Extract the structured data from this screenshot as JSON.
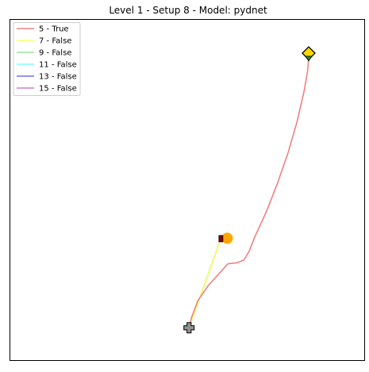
{
  "chart_data": {
    "type": "line",
    "title": "Level 1 - Setup 8 - Model: pydnet",
    "xlabel": "",
    "ylabel": "",
    "xlim": [
      0,
      100
    ],
    "ylim": [
      0,
      100
    ],
    "grid": false,
    "ticks_visible": false,
    "legend_position": "top-left",
    "series": [
      {
        "name": "5 - True",
        "color": "#f08080",
        "points": [
          [
            50.5,
            9.5
          ],
          [
            51.2,
            12.5
          ],
          [
            53,
            17.5
          ],
          [
            56,
            22
          ],
          [
            59.5,
            26
          ],
          [
            61.5,
            28.3
          ],
          [
            64,
            28.6
          ],
          [
            66,
            29.4
          ],
          [
            67.5,
            32
          ],
          [
            69,
            36
          ],
          [
            72.5,
            44
          ],
          [
            75.5,
            52
          ],
          [
            78.5,
            61
          ],
          [
            81,
            70
          ],
          [
            83,
            79
          ],
          [
            84,
            85
          ],
          [
            84.3,
            88.6
          ]
        ]
      },
      {
        "name": "7 - False",
        "color": "#ffff66",
        "points": [
          [
            50.5,
            9.5
          ],
          [
            59.5,
            35.7
          ]
        ]
      },
      {
        "name": "9 - False",
        "color": "#99e699",
        "points": [
          [
            50.5,
            9.5
          ],
          [
            59.5,
            35.7
          ]
        ]
      },
      {
        "name": "11 - False",
        "color": "#80ffff",
        "points": [
          [
            50.5,
            9.5
          ],
          [
            59.5,
            35.7
          ]
        ]
      },
      {
        "name": "13 - False",
        "color": "#7070d8",
        "points": [
          [
            50.5,
            9.5
          ],
          [
            59.5,
            35.7
          ]
        ]
      },
      {
        "name": "15 - False",
        "color": "#cc80cc",
        "points": [
          [
            50.5,
            9.5
          ],
          [
            59.5,
            35.7
          ]
        ]
      }
    ],
    "markers": [
      {
        "type": "start-cross",
        "x": 50.5,
        "y": 9.5,
        "color": "#909090"
      },
      {
        "type": "goal-diamond",
        "x": 84.3,
        "y": 90.2,
        "color": "#ffd700"
      },
      {
        "type": "goal-arrow",
        "x": 84.3,
        "y": 88.6,
        "color": "#228b22"
      },
      {
        "type": "target-circle",
        "x": 61.3,
        "y": 35.8,
        "color": "#ffa500"
      },
      {
        "type": "end-marker",
        "x": 59.5,
        "y": 35.7,
        "color": "#8b0000"
      }
    ]
  }
}
